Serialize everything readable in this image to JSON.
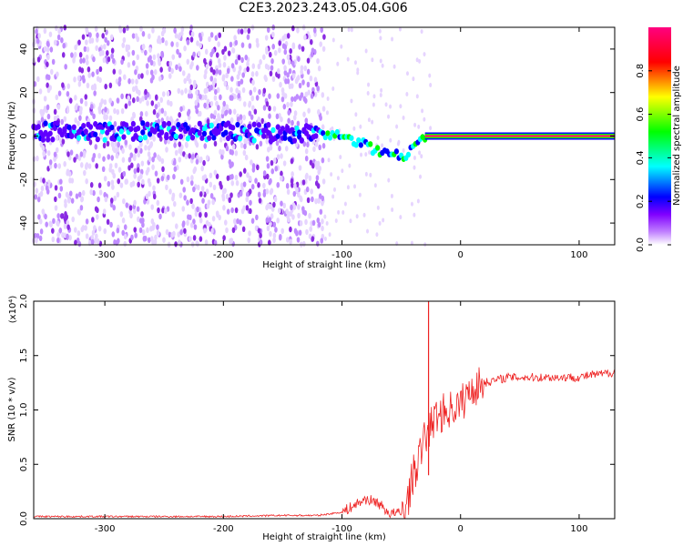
{
  "title": "C2E3.2023.243.05.04.G06",
  "chart_data": [
    {
      "type": "heatmap",
      "xlabel": "Height of straight line (km)",
      "ylabel": "Frequency (Hz)",
      "xlim": [
        -360,
        130
      ],
      "ylim": [
        -50,
        50
      ],
      "xticks": [
        -300,
        -200,
        -100,
        0,
        100
      ],
      "yticks": [
        -40,
        -20,
        0,
        20,
        40
      ],
      "colorbar": {
        "label": "Normalized spectral amplitude",
        "range": [
          0.0,
          1.0
        ],
        "ticks": [
          0.0,
          0.2,
          0.4,
          0.6,
          0.8
        ],
        "colormap": [
          "#ffffff",
          "#8000ff",
          "#0000ff",
          "#00ffff",
          "#00ff00",
          "#ffff00",
          "#ff0000",
          "#ff0080"
        ]
      },
      "ridge": {
        "x": [
          -360,
          -300,
          -200,
          -150,
          -120,
          -100,
          -90,
          -80,
          -70,
          -60,
          -50,
          -45,
          -40,
          -35,
          -30,
          -20,
          -10,
          0,
          50,
          100,
          130
        ],
        "y": [
          2,
          2,
          2,
          1,
          1,
          0,
          -2,
          -4,
          -7,
          -8,
          -9,
          -8,
          -4,
          -2,
          0,
          0,
          0,
          0,
          0,
          0,
          0
        ]
      }
    },
    {
      "type": "line",
      "xlabel": "Height of straight line (km)",
      "ylabel": "SNR (10 * v/v)",
      "exponent_label": "(x10⁴)",
      "xlim": [
        -360,
        130
      ],
      "ylim": [
        0,
        2.0
      ],
      "xticks": [
        -300,
        -200,
        -100,
        0,
        100
      ],
      "yticks": [
        0.0,
        0.5,
        1.0,
        1.5,
        2.0
      ],
      "series": [
        {
          "color": "#ee2222",
          "x": [
            -360,
            -300,
            -200,
            -150,
            -120,
            -100,
            -90,
            -80,
            -70,
            -60,
            -50,
            -45,
            -40,
            -35,
            -30,
            -25,
            -20,
            -10,
            0,
            10,
            20,
            40,
            60,
            80,
            100,
            110,
            120,
            130
          ],
          "y": [
            0.02,
            0.02,
            0.02,
            0.03,
            0.03,
            0.06,
            0.12,
            0.18,
            0.15,
            0.05,
            0.05,
            0.15,
            0.4,
            0.55,
            0.75,
            0.85,
            0.95,
            1.0,
            1.05,
            1.2,
            1.25,
            1.3,
            1.3,
            1.3,
            1.3,
            1.32,
            1.33,
            1.35
          ]
        }
      ],
      "spike": {
        "x": -27,
        "y": 2.0
      }
    }
  ]
}
